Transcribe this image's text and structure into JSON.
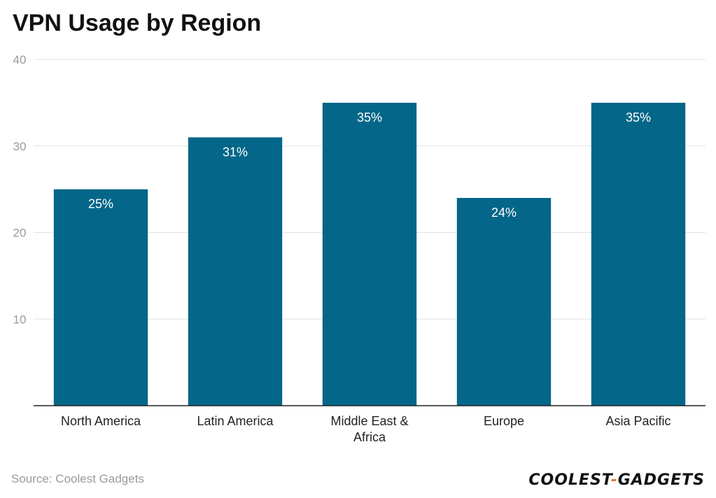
{
  "title": "VPN Usage by Region",
  "source": "Source: Coolest Gadgets",
  "logo": {
    "part1": "COOLEST",
    "separator": "-",
    "part2": "GADGETS",
    "accent_color": "#e07a2e"
  },
  "colors": {
    "bar": "#046688",
    "grid": "#e3e3e3",
    "axis": "#222222",
    "tick_text": "#9a9a9a",
    "category_text": "#222222",
    "label_text": "#ffffff"
  },
  "chart_data": {
    "type": "bar",
    "title": "VPN Usage by Region",
    "categories": [
      "North America",
      "Latin America",
      "Middle East & Africa",
      "Europe",
      "Asia Pacific"
    ],
    "category_lines": [
      [
        "North America"
      ],
      [
        "Latin America"
      ],
      [
        "Middle East &",
        "Africa"
      ],
      [
        "Europe"
      ],
      [
        "Asia Pacific"
      ]
    ],
    "values": [
      25,
      31,
      35,
      24,
      35
    ],
    "value_labels": [
      "25%",
      "31%",
      "35%",
      "24%",
      "35%"
    ],
    "yticks": [
      10,
      20,
      30,
      40
    ],
    "ylim": [
      0,
      40
    ],
    "grid": true,
    "legend": "none"
  }
}
